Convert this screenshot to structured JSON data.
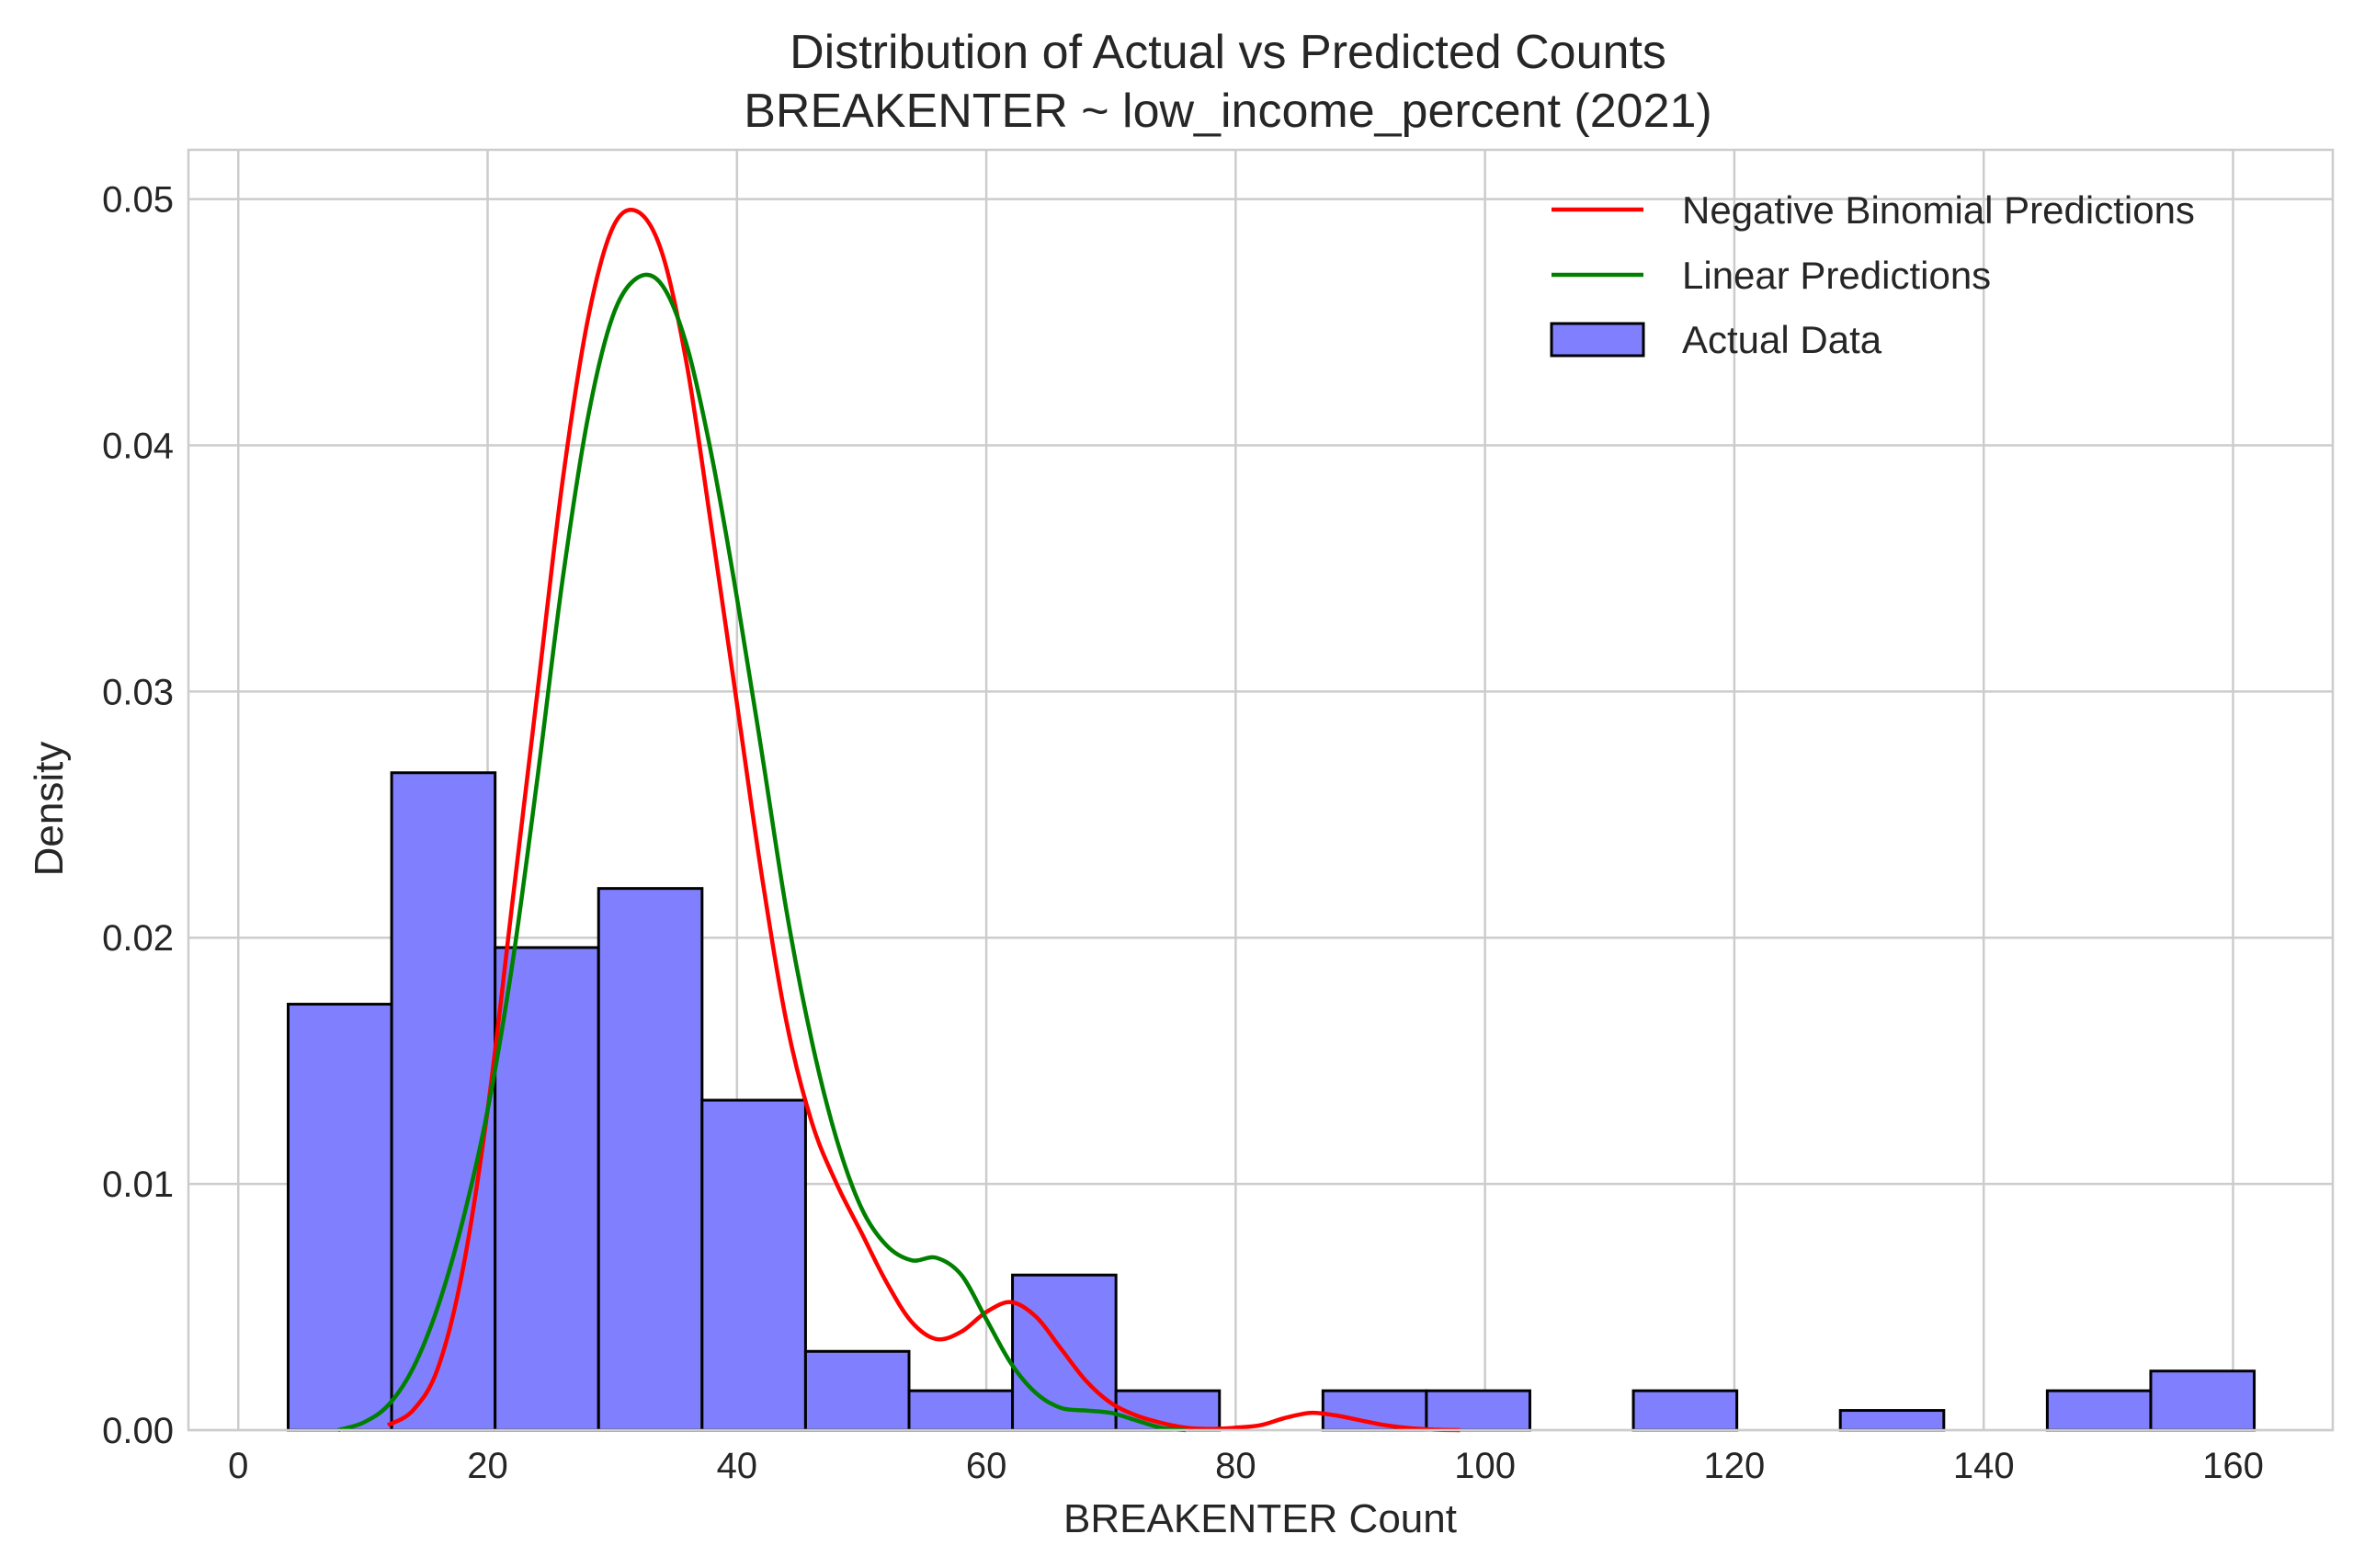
{
  "chart_data": {
    "type": "histogram",
    "title": "Distribution of Actual vs Predicted Counts",
    "subtitle": "BREAKENTER ~ low_income_percent (2021)",
    "xlabel": "BREAKENTER Count",
    "ylabel": "Density",
    "xlim": [
      -4,
      168
    ],
    "ylim": [
      0,
      0.052
    ],
    "xticks": [
      0,
      20,
      40,
      60,
      80,
      100,
      120,
      140,
      160
    ],
    "yticks": [
      0.0,
      0.01,
      0.02,
      0.03,
      0.04,
      0.05
    ],
    "xtick_labels": [
      "0",
      "20",
      "40",
      "60",
      "80",
      "100",
      "120",
      "140",
      "160"
    ],
    "ytick_labels": [
      "0.00",
      "0.01",
      "0.02",
      "0.03",
      "0.04",
      "0.05"
    ],
    "grid": true,
    "legend_position": "top-right",
    "histogram": {
      "name": "Actual Data",
      "color": "#8080ff",
      "edge_color": "#000000",
      "bins": [
        {
          "x0": 4.0,
          "x1": 12.3,
          "value": 0.0173
        },
        {
          "x0": 12.3,
          "x1": 20.6,
          "value": 0.0267
        },
        {
          "x0": 20.6,
          "x1": 28.9,
          "value": 0.0196
        },
        {
          "x0": 28.9,
          "x1": 37.2,
          "value": 0.022
        },
        {
          "x0": 37.2,
          "x1": 45.5,
          "value": 0.0134
        },
        {
          "x0": 45.5,
          "x1": 53.8,
          "value": 0.0032
        },
        {
          "x0": 53.8,
          "x1": 62.1,
          "value": 0.0016
        },
        {
          "x0": 62.1,
          "x1": 70.4,
          "value": 0.0063
        },
        {
          "x0": 70.4,
          "x1": 78.7,
          "value": 0.0016
        },
        {
          "x0": 78.7,
          "x1": 87.0,
          "value": 0.0
        },
        {
          "x0": 87.0,
          "x1": 95.3,
          "value": 0.0016
        },
        {
          "x0": 95.3,
          "x1": 103.6,
          "value": 0.0016
        },
        {
          "x0": 103.6,
          "x1": 111.9,
          "value": 0.0
        },
        {
          "x0": 111.9,
          "x1": 120.2,
          "value": 0.0016
        },
        {
          "x0": 120.2,
          "x1": 128.5,
          "value": 0.0
        },
        {
          "x0": 128.5,
          "x1": 136.8,
          "value": 0.0008
        },
        {
          "x0": 136.8,
          "x1": 145.1,
          "value": 0.0
        },
        {
          "x0": 145.1,
          "x1": 153.4,
          "value": 0.0016
        },
        {
          "x0": 153.4,
          "x1": 161.7,
          "value": 0.0024
        }
      ]
    },
    "series": [
      {
        "name": "Negative Binomial Predictions",
        "color": "#ff0000",
        "points": [
          [
            12,
            0.0002
          ],
          [
            14,
            0.0008
          ],
          [
            16,
            0.0025
          ],
          [
            18,
            0.0065
          ],
          [
            20,
            0.013
          ],
          [
            22,
            0.0215
          ],
          [
            24,
            0.03
          ],
          [
            26,
            0.0385
          ],
          [
            28,
            0.045
          ],
          [
            30,
            0.0488
          ],
          [
            32,
            0.0495
          ],
          [
            34,
            0.0478
          ],
          [
            36,
            0.0432
          ],
          [
            38,
            0.0365
          ],
          [
            40,
            0.0295
          ],
          [
            42,
            0.0225
          ],
          [
            44,
            0.0165
          ],
          [
            46,
            0.0125
          ],
          [
            48,
            0.01
          ],
          [
            50,
            0.008
          ],
          [
            52,
            0.006
          ],
          [
            54,
            0.0044
          ],
          [
            56,
            0.0037
          ],
          [
            58,
            0.004
          ],
          [
            60,
            0.0048
          ],
          [
            62,
            0.0052
          ],
          [
            64,
            0.0046
          ],
          [
            66,
            0.0033
          ],
          [
            68,
            0.002
          ],
          [
            70,
            0.0011
          ],
          [
            72,
            0.0006
          ],
          [
            74,
            0.0003
          ],
          [
            76,
            0.0001
          ],
          [
            78,
            5e-05
          ],
          [
            80,
            0.0001
          ],
          [
            82,
            0.0002
          ],
          [
            84,
            0.0005
          ],
          [
            86,
            0.0007
          ],
          [
            88,
            0.0006
          ],
          [
            90,
            0.0004
          ],
          [
            92,
            0.0002
          ],
          [
            94,
            8e-05
          ],
          [
            96,
            2e-05
          ],
          [
            98,
            0.0
          ]
        ]
      },
      {
        "name": "Linear Predictions",
        "color": "#008000",
        "points": [
          [
            8,
            0.0
          ],
          [
            10,
            0.0003
          ],
          [
            12,
            0.001
          ],
          [
            14,
            0.0025
          ],
          [
            16,
            0.005
          ],
          [
            18,
            0.0085
          ],
          [
            20,
            0.013
          ],
          [
            22,
            0.019
          ],
          [
            24,
            0.0265
          ],
          [
            26,
            0.0345
          ],
          [
            28,
            0.041
          ],
          [
            30,
            0.0452
          ],
          [
            32,
            0.0468
          ],
          [
            34,
            0.0465
          ],
          [
            36,
            0.044
          ],
          [
            38,
            0.0395
          ],
          [
            40,
            0.0338
          ],
          [
            42,
            0.0275
          ],
          [
            44,
            0.021
          ],
          [
            46,
            0.0158
          ],
          [
            48,
            0.0118
          ],
          [
            50,
            0.009
          ],
          [
            52,
            0.0075
          ],
          [
            54,
            0.0069
          ],
          [
            56,
            0.007
          ],
          [
            58,
            0.0063
          ],
          [
            60,
            0.0045
          ],
          [
            62,
            0.0027
          ],
          [
            64,
            0.0015
          ],
          [
            66,
            0.0009
          ],
          [
            68,
            0.0008
          ],
          [
            70,
            0.0007
          ],
          [
            72,
            0.0004
          ],
          [
            74,
            0.0001
          ],
          [
            76,
            0.0
          ]
        ]
      }
    ]
  }
}
